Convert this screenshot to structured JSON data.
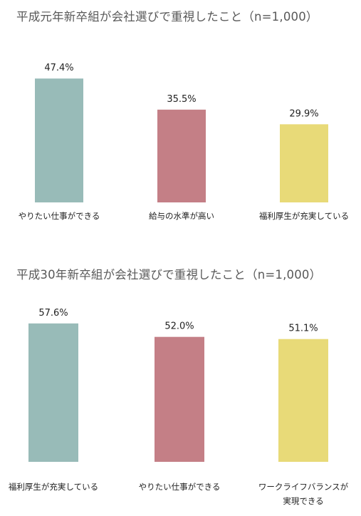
{
  "chart_data": [
    {
      "type": "bar",
      "title": "平成元年新卒組が会社選びで重視したこと（n=1,000）",
      "categories": [
        "やりたい仕事ができる",
        "給与の水準が高い",
        "福利厚生が充実している"
      ],
      "values": [
        47.4,
        35.5,
        29.9
      ],
      "value_labels": [
        "47.4%",
        "35.5%",
        "29.9%"
      ],
      "ylim": [
        0,
        60
      ],
      "grid": false,
      "axes_visible": false,
      "colors": [
        "#98bbb8",
        "#c47f86",
        "#e8da78"
      ]
    },
    {
      "type": "bar",
      "title": "平成30年新卒組が会社選びで重視したこと（n=1,000）",
      "categories": [
        "福利厚生が充実している",
        "やりたい仕事ができる",
        "ワークライフバランスが\n実現できる"
      ],
      "values": [
        57.6,
        52.0,
        51.1
      ],
      "value_labels": [
        "57.6%",
        "52.0%",
        "51.1%"
      ],
      "ylim": [
        0,
        70
      ],
      "grid": false,
      "axes_visible": false,
      "colors": [
        "#98bbb8",
        "#c47f86",
        "#e8da78"
      ]
    }
  ]
}
